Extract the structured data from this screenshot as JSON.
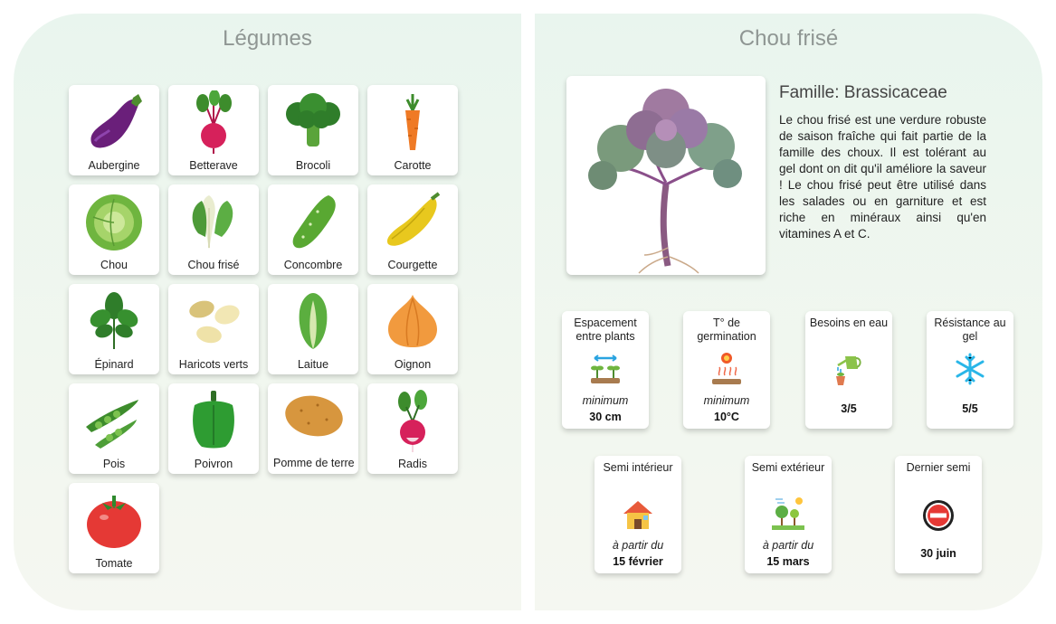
{
  "left_panel": {
    "title": "Légumes",
    "vegetables": [
      {
        "name": "Aubergine",
        "icon": "eggplant-icon"
      },
      {
        "name": "Betterave",
        "icon": "beet-icon"
      },
      {
        "name": "Brocoli",
        "icon": "broccoli-icon"
      },
      {
        "name": "Carotte",
        "icon": "carrot-icon"
      },
      {
        "name": "Chou",
        "icon": "cabbage-icon"
      },
      {
        "name": "Chou frisé",
        "icon": "kale-icon"
      },
      {
        "name": "Concombre",
        "icon": "cucumber-icon"
      },
      {
        "name": "Courgette",
        "icon": "zucchini-icon"
      },
      {
        "name": "Épinard",
        "icon": "spinach-icon"
      },
      {
        "name": "Haricots verts",
        "icon": "beans-icon"
      },
      {
        "name": "Laitue",
        "icon": "lettuce-icon"
      },
      {
        "name": "Oignon",
        "icon": "onion-icon"
      },
      {
        "name": "Pois",
        "icon": "peas-icon"
      },
      {
        "name": "Poivron",
        "icon": "pepper-icon"
      },
      {
        "name": "Pomme de terre",
        "icon": "potato-icon"
      },
      {
        "name": "Radis",
        "icon": "radish-icon"
      },
      {
        "name": "Tomate",
        "icon": "tomato-icon"
      }
    ]
  },
  "right_panel": {
    "title": "Chou frisé",
    "family": "Famille: Brassicaceae",
    "description": "Le chou frisé est une verdure robuste de saison fraîche qui fait partie de la famille des choux. Il est tolérant au gel dont on dit qu'il améliore la saveur ! Le chou frisé peut être utilisé dans les salades ou en garniture et est riche en minéraux ainsi qu'en vitamines A et C.",
    "growing_info": [
      {
        "title": "Espacement entre plants",
        "icon": "spacing-icon",
        "sub": "minimum",
        "value": "30 cm"
      },
      {
        "title": "T° de germination",
        "icon": "heat-icon",
        "sub": "minimum",
        "value": "10°C"
      },
      {
        "title": "Besoins en eau",
        "icon": "watering-can-icon",
        "sub": "",
        "value": "3/5"
      },
      {
        "title": "Résistance au gel",
        "icon": "snowflake-icon",
        "sub": "",
        "value": "5/5"
      }
    ],
    "sowing_info": [
      {
        "title": "Semi intérieur",
        "icon": "house-icon",
        "sub": "à partir du",
        "value": "15 février"
      },
      {
        "title": "Semi extérieur",
        "icon": "garden-icon",
        "sub": "à partir du",
        "value": "15 mars"
      },
      {
        "title": "Dernier semi",
        "icon": "no-entry-icon",
        "sub": "",
        "value": "30 juin"
      }
    ]
  }
}
